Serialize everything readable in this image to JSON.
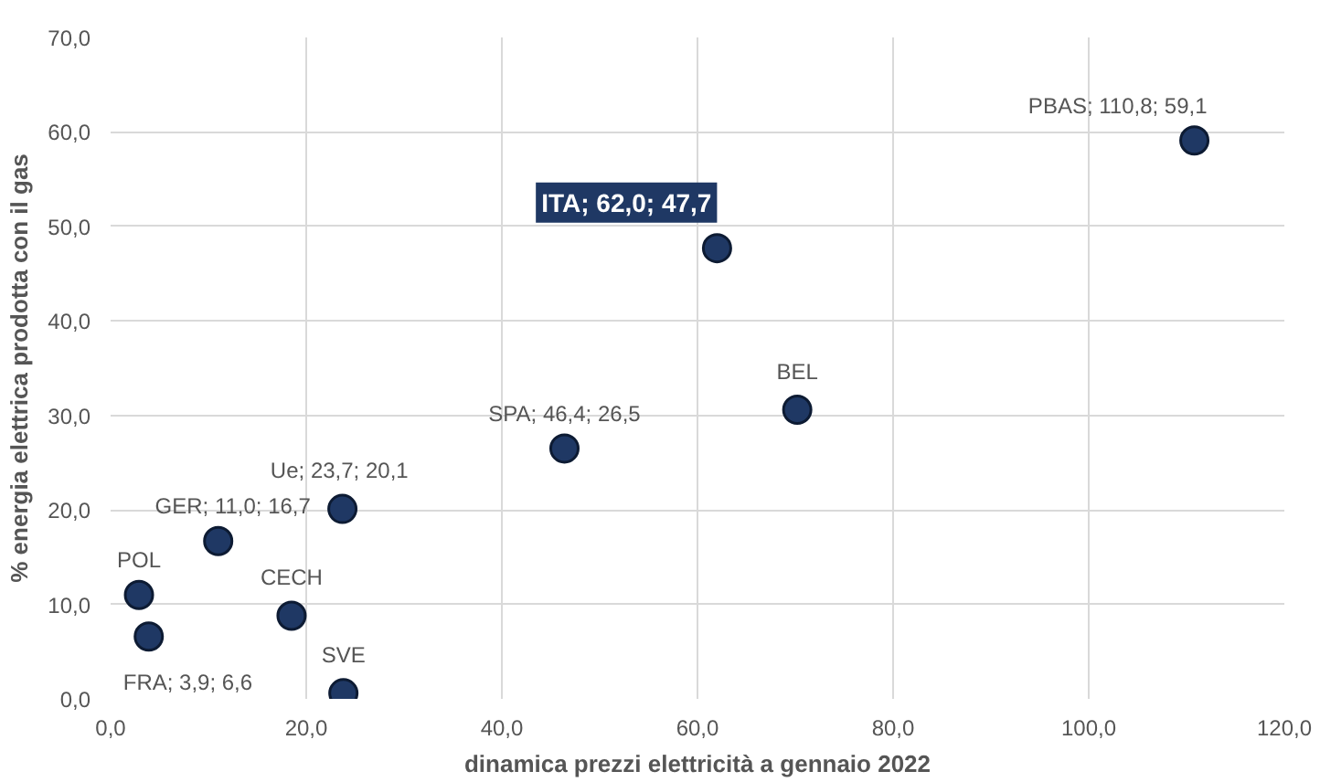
{
  "chart_data": {
    "type": "scatter",
    "xlabel": "dinamica prezzi elettricità a gennaio 2022",
    "ylabel": "% energia elettrica prodotta con il gas",
    "x": [
      110.8,
      62.0,
      70.2,
      46.4,
      23.7,
      11.0,
      2.9,
      3.9,
      18.5,
      23.8
    ],
    "values": [
      59.1,
      47.7,
      30.6,
      26.5,
      20.1,
      16.7,
      11.0,
      6.6,
      8.8,
      0.6
    ],
    "color": "#1f3864",
    "marker": "circle",
    "grid": true,
    "xlim": [
      0,
      120
    ],
    "xticks": [
      {
        "value": 0,
        "label": "0,0"
      },
      {
        "value": 20,
        "label": "20,0"
      },
      {
        "value": 40,
        "label": "40,0"
      },
      {
        "value": 60,
        "label": "60,0"
      },
      {
        "value": 80,
        "label": "80,0"
      },
      {
        "value": 100,
        "label": "100,0"
      },
      {
        "value": 120,
        "label": "120,0"
      }
    ],
    "ylim": [
      0,
      70
    ],
    "yticks": [
      {
        "value": 0,
        "label": "0,0"
      },
      {
        "value": 10,
        "label": "10,0"
      },
      {
        "value": 20,
        "label": "20,0"
      },
      {
        "value": 30,
        "label": "30,0"
      },
      {
        "value": 40,
        "label": "40,0"
      },
      {
        "value": 50,
        "label": "50,0"
      },
      {
        "value": 60,
        "label": "60,0"
      },
      {
        "value": 70,
        "label": "70,0"
      }
    ],
    "annotations": [
      {
        "text": "PBAS; 110,8; 59,1",
        "x": 110.8,
        "y": 59.1
      },
      {
        "text": "ITA; 62,0; 47,7",
        "x": 62.0,
        "y": 47.7
      },
      {
        "text": "BEL",
        "x": 70.2,
        "y": 30.6
      },
      {
        "text": "SPA; 46,4; 26,5",
        "x": 46.4,
        "y": 26.5
      },
      {
        "text": "Ue; 23,7;  20,1",
        "x": 23.7,
        "y": 20.1
      },
      {
        "text": "GER; 11,0; 16,7",
        "x": 11.0,
        "y": 16.7
      },
      {
        "text": "POL",
        "x": 2.9,
        "y": 11.0
      },
      {
        "text": "FRA; 3,9; 6,6",
        "x": 3.9,
        "y": 6.6
      },
      {
        "text": "CECH",
        "x": 18.5,
        "y": 8.8
      },
      {
        "text": "SVE",
        "x": 23.8,
        "y": 0.6
      }
    ]
  }
}
